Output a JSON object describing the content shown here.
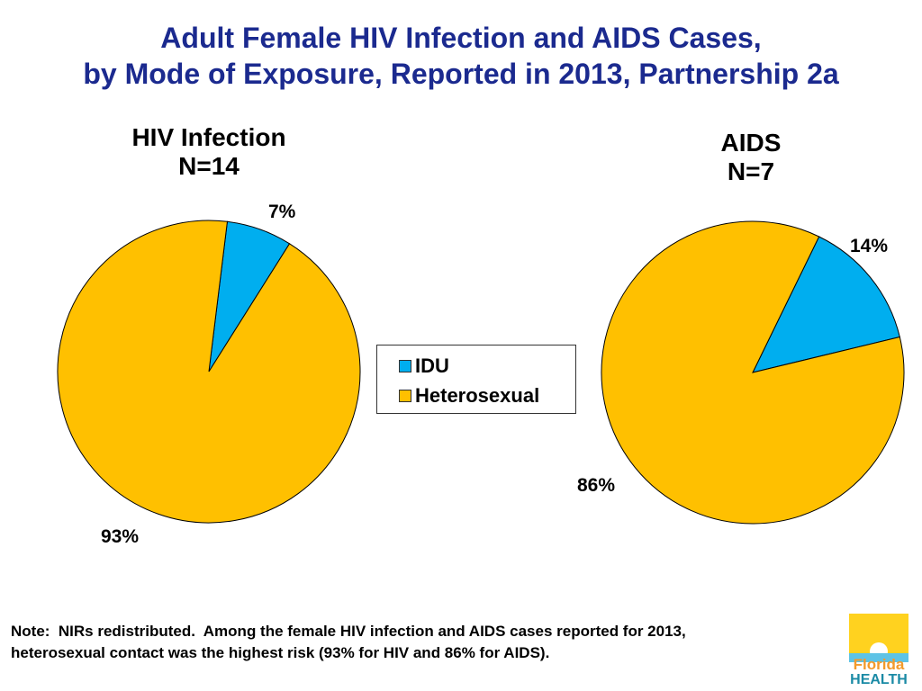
{
  "title_line1": "Adult Female HIV Infection and AIDS Cases,",
  "title_line2": "by Mode of Exposure, Reported in 2013, Partnership 2a",
  "note_line1": "Note:  NIRs redistributed.  Among the female HIV infection and AIDS cases reported for 2013,",
  "note_line2": "heterosexual contact was the highest risk (93% for HIV and 86% for AIDS).",
  "logo": {
    "line1": "Florida",
    "line2": "HEALTH"
  },
  "colors": {
    "IDU": "#00aeef",
    "Heterosexual": "#ffc000",
    "title": "#1b2a8f"
  },
  "chart_data": [
    {
      "type": "pie",
      "title": "HIV Infection",
      "subtitle": "N=14",
      "categories": [
        "IDU",
        "Heterosexual"
      ],
      "values": [
        7,
        93
      ],
      "labels": [
        "7%",
        "93%"
      ],
      "legend": "center"
    },
    {
      "type": "pie",
      "title": "AIDS",
      "subtitle": "N=7",
      "categories": [
        "IDU",
        "Heterosexual"
      ],
      "values": [
        14,
        86
      ],
      "labels": [
        "14%",
        "86%"
      ],
      "legend": "center"
    }
  ],
  "legend": {
    "items": [
      "IDU",
      "Heterosexual"
    ]
  }
}
